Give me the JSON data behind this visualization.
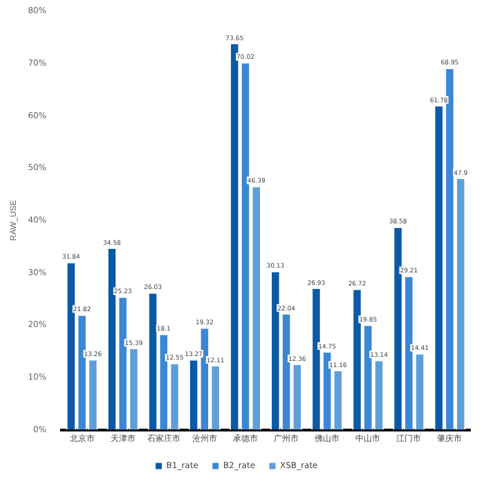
{
  "chart_data": {
    "type": "bar",
    "ylabel": "RAW_USE",
    "categories": [
      "北京市",
      "天津市",
      "石家庄市",
      "沧州市",
      "承德市",
      "广州市",
      "佛山市",
      "中山市",
      "江门市",
      "肇庆市"
    ],
    "series": [
      {
        "name": "B1_rate",
        "color": "#0b5aa5",
        "values": [
          31.84,
          34.58,
          26.03,
          13.27,
          73.65,
          30.13,
          26.93,
          26.72,
          38.58,
          61.78
        ]
      },
      {
        "name": "B2_rate",
        "color": "#3a87d6",
        "values": [
          21.82,
          25.23,
          18.1,
          19.32,
          70.02,
          22.04,
          14.75,
          19.85,
          29.21,
          68.95
        ]
      },
      {
        "name": "XSB_rate",
        "color": "#5f9fd8",
        "values": [
          13.26,
          15.39,
          12.55,
          12.11,
          46.39,
          12.36,
          11.16,
          13.14,
          14.41,
          47.9
        ]
      }
    ],
    "ylim": [
      0,
      80
    ],
    "yticks": [
      {
        "value": 0,
        "label": "0%"
      },
      {
        "value": 10,
        "label": "10%"
      },
      {
        "value": 20,
        "label": "20%"
      },
      {
        "value": 30,
        "label": "30%"
      },
      {
        "value": 40,
        "label": "40%"
      },
      {
        "value": 50,
        "label": "50%"
      },
      {
        "value": 60,
        "label": "60%"
      },
      {
        "value": 70,
        "label": "70%"
      },
      {
        "value": 80,
        "label": "80%"
      }
    ],
    "grid": false,
    "legend": "bottom",
    "data_labels": true
  }
}
